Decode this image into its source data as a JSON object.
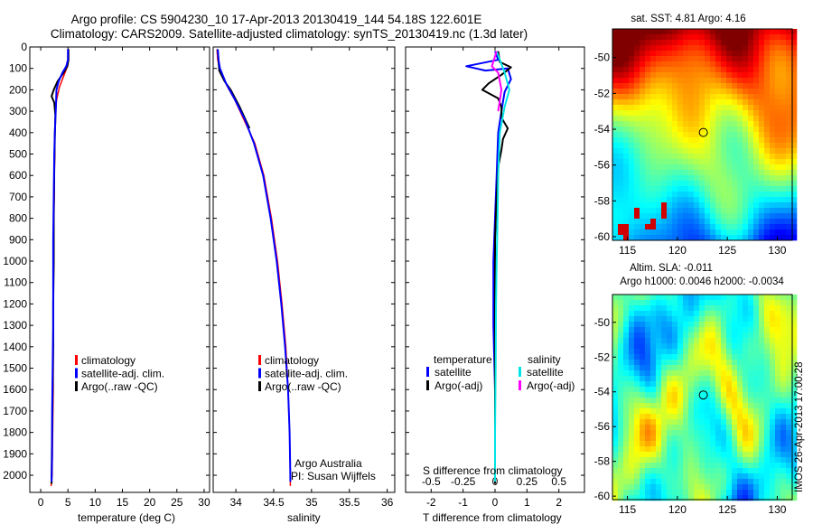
{
  "title": {
    "line1": "Argo profile: CS 5904230_10 17-Apr-2013 20130419_144 54.18S 122.601E",
    "line2": "Climatology: CARS2009. Satellite-adjusted climatology: synTS_20130419.nc (1.3d later)"
  },
  "colors": {
    "climatology": "#ff0000",
    "satellite": "#0000ff",
    "argo": "#000000",
    "satellite_s": "#00e5e5",
    "argo_s": "#ff00ff"
  },
  "depth_axis": {
    "ticks": [
      0,
      100,
      200,
      300,
      400,
      500,
      600,
      700,
      800,
      900,
      1000,
      1100,
      1200,
      1300,
      1400,
      1500,
      1600,
      1700,
      1800,
      1900,
      2000
    ],
    "range": [
      0,
      2080
    ]
  },
  "chart_data": [
    {
      "type": "line",
      "id": "temperature",
      "xlabel": "temperature (deg C)",
      "xlim": [
        -2,
        31
      ],
      "xticks": [
        0,
        5,
        10,
        15,
        20,
        25,
        30
      ],
      "ylim": [
        2080,
        0
      ],
      "legend": [
        "climatology",
        "satellite-adj. clim.",
        "Argo(..raw -QC)"
      ],
      "series": [
        {
          "name": "climatology",
          "color": "#ff0000",
          "width": 1.5,
          "points": [
            [
              5,
              10
            ],
            [
              5,
              50
            ],
            [
              4.9,
              90
            ],
            [
              4.3,
              130
            ],
            [
              3.4,
              190
            ],
            [
              2.9,
              250
            ],
            [
              2.7,
              320
            ],
            [
              2.6,
              400
            ],
            [
              2.6,
              500
            ],
            [
              2.5,
              600
            ],
            [
              2.5,
              700
            ],
            [
              2.4,
              800
            ],
            [
              2.4,
              1000
            ],
            [
              2.3,
              1200
            ],
            [
              2.3,
              1400
            ],
            [
              2.3,
              1600
            ],
            [
              2.2,
              1800
            ],
            [
              2.1,
              2000
            ],
            [
              1.9,
              2050
            ]
          ]
        },
        {
          "name": "Argo",
          "color": "#000000",
          "width": 2,
          "points": [
            [
              5.1,
              10
            ],
            [
              5.1,
              60
            ],
            [
              4.9,
              90
            ],
            [
              4.2,
              120
            ],
            [
              3.1,
              160
            ],
            [
              2.4,
              200
            ],
            [
              2.0,
              230
            ],
            [
              2.5,
              260
            ],
            [
              2.7,
              320
            ],
            [
              2.6,
              420
            ],
            [
              2.5,
              560
            ],
            [
              2.4,
              800
            ],
            [
              2.4,
              1000
            ],
            [
              2.3,
              1200
            ],
            [
              2.3,
              1400
            ],
            [
              2.2,
              1600
            ],
            [
              2.1,
              1800
            ],
            [
              2.0,
              2000
            ],
            [
              2.0,
              2040
            ]
          ]
        },
        {
          "name": "satellite",
          "color": "#0000ff",
          "width": 2,
          "points": [
            [
              5.0,
              10
            ],
            [
              5.0,
              60
            ],
            [
              4.7,
              90
            ],
            [
              4.0,
              120
            ],
            [
              3.3,
              160
            ],
            [
              2.9,
              200
            ],
            [
              2.8,
              280
            ],
            [
              2.6,
              400
            ],
            [
              2.5,
              500
            ],
            [
              2.4,
              700
            ],
            [
              2.3,
              900
            ],
            [
              2.3,
              1100
            ],
            [
              2.3,
              1300
            ],
            [
              2.2,
              1500
            ],
            [
              2.1,
              1700
            ],
            [
              2.1,
              1900
            ],
            [
              2.0,
              2030
            ]
          ]
        }
      ]
    },
    {
      "type": "line",
      "id": "salinity",
      "xlabel": "salinity",
      "xlim": [
        33.7,
        36.1
      ],
      "xticks": [
        34,
        34.5,
        35,
        35.5,
        36
      ],
      "xtick_labels": [
        "34",
        "34.5",
        "35",
        "35.5",
        "36"
      ],
      "ylim": [
        2080,
        0
      ],
      "legend": [
        "climatology",
        "satellite-adj. clim.",
        "Argo(..raw -QC)"
      ],
      "series": [
        {
          "name": "climatology",
          "color": "#ff0000",
          "width": 1.5,
          "points": [
            [
              33.75,
              10
            ],
            [
              33.76,
              60
            ],
            [
              33.79,
              110
            ],
            [
              33.88,
              180
            ],
            [
              33.99,
              250
            ],
            [
              34.12,
              350
            ],
            [
              34.25,
              450
            ],
            [
              34.37,
              600
            ],
            [
              34.47,
              800
            ],
            [
              34.55,
              1000
            ],
            [
              34.61,
              1200
            ],
            [
              34.66,
              1400
            ],
            [
              34.69,
              1600
            ],
            [
              34.71,
              1800
            ],
            [
              34.72,
              2000
            ],
            [
              34.72,
              2050
            ]
          ]
        },
        {
          "name": "Argo",
          "color": "#000000",
          "width": 2,
          "points": [
            [
              33.76,
              10
            ],
            [
              33.77,
              60
            ],
            [
              33.78,
              110
            ],
            [
              33.85,
              160
            ],
            [
              33.93,
              200
            ],
            [
              34.05,
              280
            ],
            [
              34.18,
              380
            ]
          ]
        },
        {
          "name": "satellite",
          "color": "#0000ff",
          "width": 2,
          "points": [
            [
              33.76,
              10
            ],
            [
              33.77,
              60
            ],
            [
              33.79,
              100
            ],
            [
              33.87,
              170
            ],
            [
              33.98,
              240
            ],
            [
              34.12,
              340
            ],
            [
              34.24,
              450
            ],
            [
              34.36,
              600
            ],
            [
              34.46,
              800
            ],
            [
              34.54,
              1000
            ],
            [
              34.6,
              1200
            ],
            [
              34.65,
              1400
            ],
            [
              34.69,
              1600
            ],
            [
              34.71,
              1800
            ],
            [
              34.72,
              2000
            ],
            [
              34.72,
              2030
            ]
          ]
        }
      ]
    },
    {
      "type": "line",
      "id": "difference",
      "xlabel": "T difference from climatology",
      "xlabel_top": "S difference from climatology",
      "xlim": [
        -2.8,
        2.8
      ],
      "xticks": [
        -2,
        -1,
        0,
        1,
        2
      ],
      "s_ticks": [
        -0.5,
        -0.25,
        0,
        0.25,
        0.5
      ],
      "s_tick_labels": [
        "-0.5",
        "-0.25",
        "0",
        "0.25",
        "0.5"
      ],
      "ylim": [
        2080,
        0
      ],
      "legend_titles": [
        "temperature",
        "salinity"
      ],
      "legend": [
        "satellite",
        "Argo(-adj)",
        "satellite",
        "Argo(-adj)"
      ],
      "series": [
        {
          "name": "T satellite",
          "color": "#0000ff",
          "width": 2,
          "points": [
            [
              0,
              20
            ],
            [
              0.1,
              60
            ],
            [
              -0.9,
              90
            ],
            [
              -0.3,
              110
            ],
            [
              0.4,
              100
            ],
            [
              0.5,
              150
            ],
            [
              0.3,
              210
            ],
            [
              0.2,
              300
            ],
            [
              0.1,
              400
            ],
            [
              0.05,
              600
            ],
            [
              0,
              800
            ],
            [
              -0.05,
              1000
            ],
            [
              -0.05,
              1300
            ],
            [
              0,
              1600
            ],
            [
              0,
              2030
            ]
          ]
        },
        {
          "name": "T Argo",
          "color": "#000000",
          "width": 2,
          "points": [
            [
              0.1,
              20
            ],
            [
              0.15,
              70
            ],
            [
              0.5,
              95
            ],
            [
              0.2,
              130
            ],
            [
              -0.2,
              170
            ],
            [
              -0.4,
              200
            ],
            [
              0.1,
              240
            ],
            [
              0.2,
              280
            ],
            [
              0.2,
              330
            ],
            [
              0.4,
              380
            ],
            [
              0.25,
              430
            ],
            [
              0.2,
              480
            ],
            [
              0.1,
              560
            ],
            [
              0.05,
              700
            ],
            [
              0,
              900
            ],
            [
              0,
              1200
            ],
            [
              0,
              1500
            ],
            [
              0,
              1800
            ],
            [
              0,
              2040
            ]
          ]
        },
        {
          "name": "S satellite",
          "color": "#00e5e5",
          "width": 2,
          "points": [
            [
              0.05,
              20
            ],
            [
              0.2,
              80
            ],
            [
              0.3,
              120
            ],
            [
              0.45,
              200
            ],
            [
              0.3,
              280
            ],
            [
              0.15,
              400
            ],
            [
              0.1,
              600
            ],
            [
              0.08,
              800
            ],
            [
              0.05,
              1000
            ],
            [
              0.03,
              1200
            ],
            [
              0.02,
              1500
            ],
            [
              0,
              1800
            ],
            [
              0,
              2030
            ]
          ]
        },
        {
          "name": "S Argo",
          "color": "#ff00ff",
          "width": 2,
          "points": [
            [
              0.05,
              20
            ],
            [
              -0.1,
              90
            ],
            [
              0.1,
              120
            ],
            [
              0.2,
              200
            ],
            [
              0.1,
              300
            ]
          ]
        }
      ]
    },
    {
      "type": "heatmap",
      "id": "sst_map",
      "title": "sat. SST: 4.81 Argo: 4.16",
      "xticks": [
        115,
        120,
        125,
        130
      ],
      "yticks": [
        -50,
        -52,
        -54,
        -56,
        -58,
        -60
      ],
      "xlim": [
        113.5,
        131.5
      ],
      "ylim": [
        -60.2,
        -48.4
      ],
      "argo_position": [
        122.601,
        -54.18
      ]
    },
    {
      "type": "heatmap",
      "id": "sla_map",
      "title": "Altim. SLA: -0.011",
      "subtitle": "Argo h1000: 0.0046 h2000: -0.0034",
      "xticks": [
        115,
        120,
        125,
        130
      ],
      "yticks": [
        -50,
        -52,
        -54,
        -56,
        -58,
        -60
      ],
      "xlim": [
        113.5,
        131.5
      ],
      "ylim": [
        -60.2,
        -48.4
      ],
      "argo_position": [
        122.601,
        -54.18
      ]
    }
  ],
  "footer": {
    "credit_line1": "Argo Australia",
    "credit_line2": "PI: Susan Wijffels",
    "stamp": "IMOS 26-Apr-2013 17:00:28"
  }
}
